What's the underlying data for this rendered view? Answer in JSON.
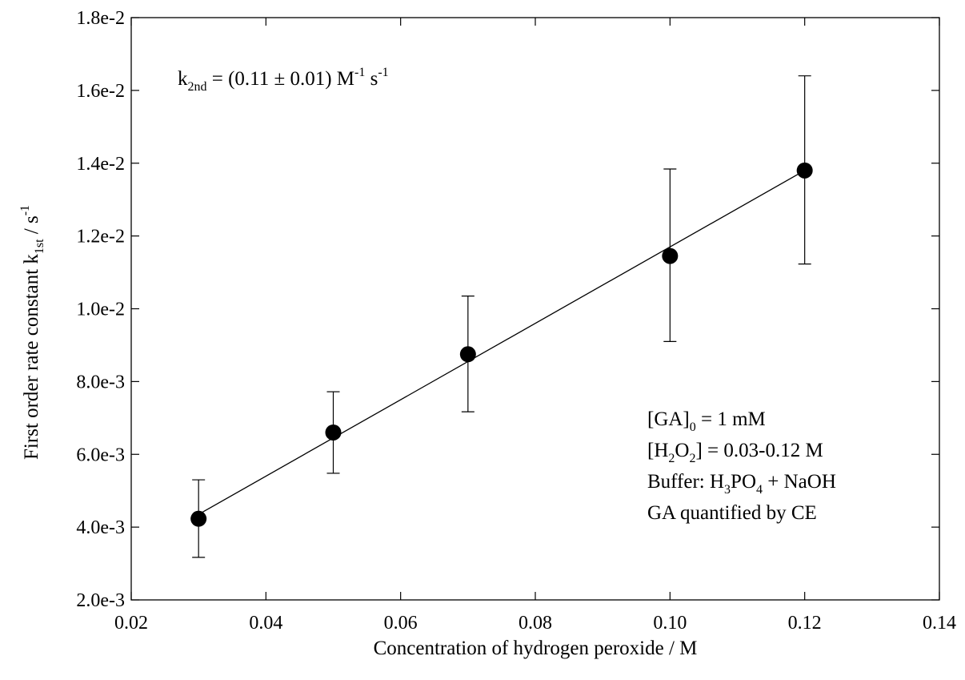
{
  "chart_data": {
    "type": "scatter",
    "title": "",
    "xlabel": "Concentration of hydrogen peroxide / M",
    "ylabel": {
      "main": "First order rate constant k",
      "sub": "1st",
      "unit": " / s",
      "sup": "-1"
    },
    "xlim": [
      0.02,
      0.14
    ],
    "ylim": [
      0.002,
      0.018
    ],
    "x_ticks": [
      0.02,
      0.04,
      0.06,
      0.08,
      0.1,
      0.12,
      0.14
    ],
    "x_tick_labels": [
      "0.02",
      "0.04",
      "0.06",
      "0.08",
      "0.10",
      "0.12",
      "0.14"
    ],
    "y_ticks": [
      0.002,
      0.004,
      0.006,
      0.008,
      0.01,
      0.012,
      0.014,
      0.016,
      0.018
    ],
    "y_tick_labels": [
      "2.0e-3",
      "4.0e-3",
      "6.0e-3",
      "8.0e-3",
      "1.0e-2",
      "1.2e-2",
      "1.4e-2",
      "1.6e-2",
      "1.8e-2"
    ],
    "grid": false,
    "series": [
      {
        "type": "scatter",
        "marker": "filled-circle",
        "color": "#000000",
        "x": [
          0.03,
          0.05,
          0.07,
          0.1,
          0.12
        ],
        "y": [
          0.00423,
          0.0066,
          0.00875,
          0.01145,
          0.0138
        ],
        "y_err_low": [
          0.00317,
          0.00548,
          0.00717,
          0.0091,
          0.01123
        ],
        "y_err_high": [
          0.0053,
          0.00772,
          0.01035,
          0.01384,
          0.0164
        ]
      },
      {
        "type": "line",
        "color": "#000000",
        "x": [
          0.03,
          0.12
        ],
        "y": [
          0.00435,
          0.0138
        ]
      }
    ],
    "annotations": {
      "k2nd": {
        "k": "k",
        "sub": "2nd",
        "eq": " = (0.11 ± 0.01) M",
        "sup1": "-1",
        "mid": " s",
        "sup2": "-1"
      },
      "conditions": {
        "line1": {
          "a": "[GA]",
          "sub": "0",
          "b": " = 1 mM"
        },
        "line2": {
          "a": "[H",
          "sub": "2",
          "b": "O",
          "sub2": "2",
          "c": "] = 0.03-0.12 M"
        },
        "line3": {
          "a": "Buffer: H",
          "sub": "3",
          "b": "PO",
          "sub2": "4",
          "c": " + NaOH"
        },
        "line4": {
          "a": "GA quantified by CE"
        }
      }
    }
  }
}
